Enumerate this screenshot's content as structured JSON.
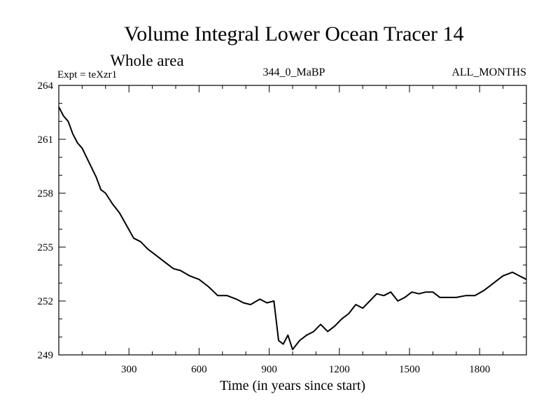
{
  "chart_data": {
    "type": "line",
    "title": "Volume Integral Lower Ocean Tracer 14",
    "subtitle": "Whole area",
    "expt_label": "Expt = teXzr1",
    "period_label": "344_0_MaBP",
    "months_label": "ALL_MONTHS",
    "xlabel": "Time (in years since start)",
    "ylabel": "",
    "xlim": [
      0,
      2000
    ],
    "ylim": [
      249,
      264
    ],
    "xticks": [
      300,
      600,
      900,
      1200,
      1500,
      1800
    ],
    "yticks": [
      249,
      252,
      255,
      258,
      261,
      264
    ],
    "grid": false,
    "series": [
      {
        "name": "teXzr1",
        "x": [
          0,
          20,
          40,
          60,
          80,
          100,
          130,
          160,
          180,
          200,
          230,
          260,
          290,
          320,
          350,
          380,
          420,
          460,
          490,
          520,
          560,
          600,
          640,
          680,
          720,
          760,
          790,
          820,
          860,
          890,
          920,
          940,
          960,
          980,
          1000,
          1030,
          1060,
          1090,
          1120,
          1150,
          1180,
          1210,
          1240,
          1270,
          1300,
          1330,
          1360,
          1390,
          1420,
          1450,
          1480,
          1510,
          1540,
          1570,
          1600,
          1630,
          1660,
          1700,
          1740,
          1780,
          1820,
          1860,
          1900,
          1940,
          1970,
          2000
        ],
        "y": [
          262.8,
          262.3,
          262.0,
          261.3,
          260.8,
          260.5,
          259.7,
          258.9,
          258.2,
          258.0,
          257.4,
          256.9,
          256.2,
          255.5,
          255.3,
          254.9,
          254.5,
          254.1,
          253.8,
          253.7,
          253.4,
          253.2,
          252.8,
          252.3,
          252.3,
          252.1,
          251.9,
          251.8,
          252.1,
          251.9,
          252.0,
          249.8,
          249.6,
          250.1,
          249.3,
          249.8,
          250.1,
          250.3,
          250.7,
          250.3,
          250.6,
          251.0,
          251.3,
          251.8,
          251.6,
          252.0,
          252.4,
          252.3,
          252.5,
          252.0,
          252.2,
          252.5,
          252.4,
          252.5,
          252.5,
          252.2,
          252.2,
          252.2,
          252.3,
          252.3,
          252.6,
          253.0,
          253.4,
          253.6,
          253.4,
          253.2
        ]
      }
    ]
  },
  "style": {
    "line_color": "#000000",
    "axis_color": "#000000",
    "background": "#ffffff"
  }
}
